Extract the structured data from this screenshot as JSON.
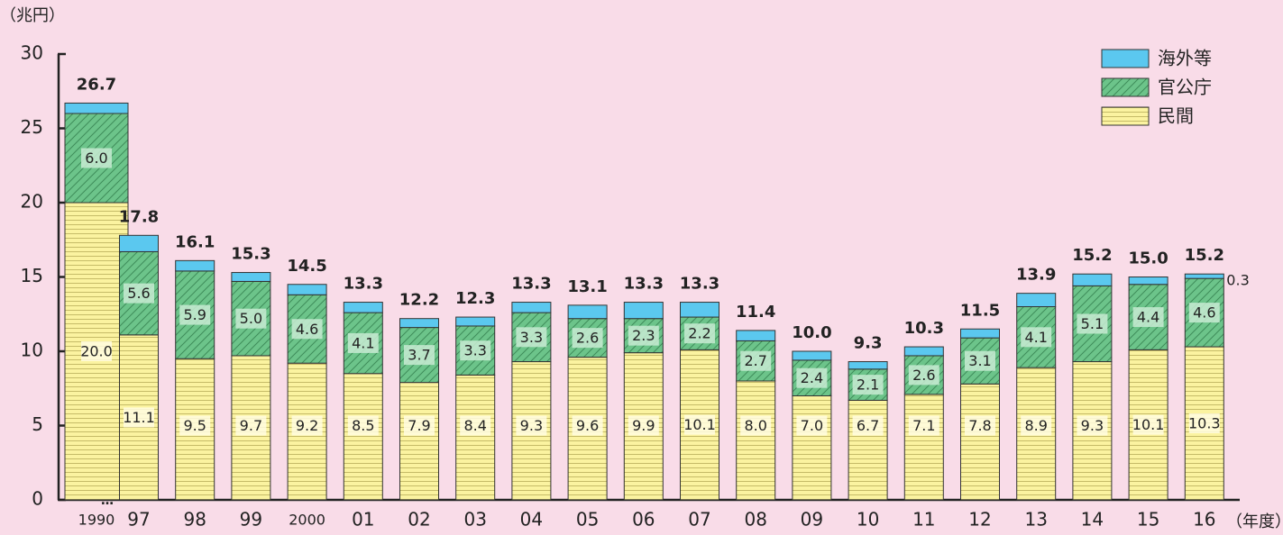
{
  "chart_data": {
    "type": "stacked-bar",
    "y_label": "（兆円）",
    "x_label": "（年度）",
    "categories": [
      "1990",
      "97",
      "98",
      "99",
      "2000",
      "01",
      "02",
      "03",
      "04",
      "05",
      "06",
      "07",
      "08",
      "09",
      "10",
      "11",
      "12",
      "13",
      "14",
      "15",
      "16"
    ],
    "series": [
      {
        "name": "民間",
        "color": "#fbf3a0",
        "values": [
          20.0,
          11.1,
          9.5,
          9.7,
          9.2,
          8.5,
          7.9,
          8.4,
          9.3,
          9.6,
          9.9,
          10.1,
          8.0,
          7.0,
          6.7,
          7.1,
          7.8,
          8.9,
          9.3,
          10.1,
          10.3
        ],
        "value_labels": [
          "20.0",
          "11.1",
          "9.5",
          "9.7",
          "9.2",
          "8.5",
          "7.9",
          "8.4",
          "9.3",
          "9.6",
          "9.9",
          "10.1",
          "8.0",
          "7.0",
          "6.7",
          "7.1",
          "7.8",
          "8.9",
          "9.3",
          "10.1",
          "10.3"
        ]
      },
      {
        "name": "官公庁",
        "color": "#6cc48a",
        "values": [
          6.0,
          5.6,
          5.9,
          5.0,
          4.6,
          4.1,
          3.7,
          3.3,
          3.3,
          2.6,
          2.3,
          2.2,
          2.7,
          2.4,
          2.1,
          2.6,
          3.1,
          4.1,
          5.1,
          4.4,
          4.6
        ],
        "value_labels": [
          "6.0",
          "5.6",
          "5.9",
          "5.0",
          "4.6",
          "4.1",
          "3.7",
          "3.3",
          "3.3",
          "2.6",
          "2.3",
          "2.2",
          "2.7",
          "2.4",
          "2.1",
          "2.6",
          "3.1",
          "4.1",
          "5.1",
          "4.4",
          "4.6"
        ]
      },
      {
        "name": "海外等",
        "color": "#5bc8ef",
        "values": [
          0.7,
          1.1,
          0.7,
          0.6,
          0.7,
          0.7,
          0.6,
          0.6,
          0.7,
          0.9,
          1.1,
          1.0,
          0.7,
          0.6,
          0.5,
          0.6,
          0.6,
          0.9,
          0.8,
          0.5,
          0.3
        ],
        "value_labels": [
          null,
          null,
          null,
          null,
          null,
          null,
          null,
          null,
          null,
          null,
          null,
          null,
          null,
          null,
          null,
          null,
          null,
          null,
          null,
          null,
          "0.3"
        ]
      }
    ],
    "totals": [
      26.7,
      17.8,
      16.1,
      15.3,
      14.5,
      13.3,
      12.2,
      12.3,
      13.3,
      13.1,
      13.3,
      13.3,
      11.4,
      10.0,
      9.3,
      10.3,
      11.5,
      13.9,
      15.2,
      15.0,
      15.2
    ],
    "total_labels": [
      "26.7",
      "17.8",
      "16.1",
      "15.3",
      "14.5",
      "13.3",
      "12.2",
      "12.3",
      "13.3",
      "13.1",
      "13.3",
      "13.3",
      "11.4",
      "10.0",
      "9.3",
      "10.3",
      "11.5",
      "13.9",
      "15.2",
      "15.0",
      "15.2"
    ],
    "ylim": [
      0,
      30
    ],
    "yticks": [
      0,
      5,
      10,
      15,
      20,
      25,
      30
    ],
    "legend": "top-right"
  }
}
